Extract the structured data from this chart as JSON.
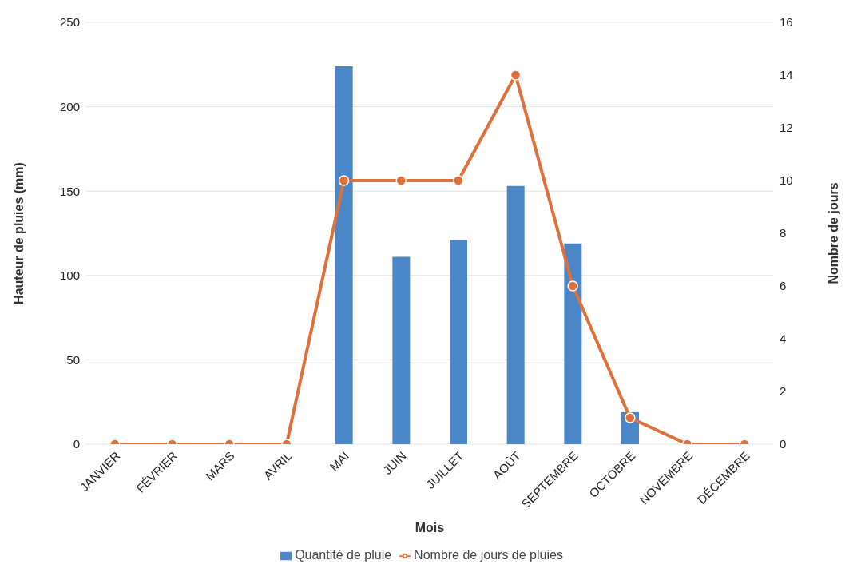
{
  "chart_data": {
    "type": "bar",
    "xlabel": "Mois",
    "ylabel": "Hauteur de pluies (mm)",
    "y2label": "Nombre de jours",
    "categories": [
      "JANVIER",
      "FÉVRIER",
      "MARS",
      "AVRIL",
      "MAI",
      "JUIN",
      "JUILLET",
      "AOÛT",
      "SEPTEMBRE",
      "OCTOBRE",
      "NOVEMBRE",
      "DÉCEMBRE"
    ],
    "series": [
      {
        "name": "Quantité de pluie",
        "color": "#4a86c8",
        "values": [
          0,
          0,
          0,
          0,
          224,
          111,
          121,
          153,
          119,
          19,
          0,
          0
        ]
      },
      {
        "name": "Nombre de jours de pluies",
        "type": "line",
        "axis": "y2",
        "color": "#e0703a",
        "marker": "circle",
        "values": [
          0,
          0,
          0,
          0,
          10,
          10,
          10,
          14,
          6,
          1,
          0,
          0
        ]
      }
    ],
    "ylim": [
      0,
      250
    ],
    "yticks": [
      0,
      50,
      100,
      150,
      200,
      250
    ],
    "y2lim": [
      0,
      16
    ],
    "y2ticks": [
      0,
      2,
      4,
      6,
      8,
      10,
      12,
      14,
      16
    ],
    "grid": "y",
    "legend": "bottom"
  }
}
